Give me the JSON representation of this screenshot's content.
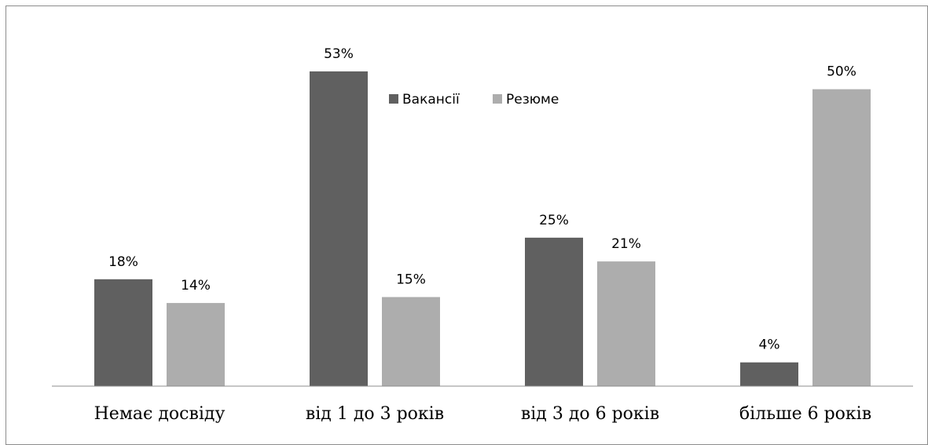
{
  "chart_data": {
    "type": "bar",
    "categories": [
      "Немає досвіду",
      "від 1 до 3 років",
      "від 3 до 6 років",
      "більше 6 років"
    ],
    "series": [
      {
        "name": "Вакансії",
        "values": [
          18,
          53,
          25,
          4
        ],
        "labels": [
          "18%",
          "53%",
          "25%",
          "4%"
        ],
        "color": "#606060"
      },
      {
        "name": "Резюме",
        "values": [
          14,
          15,
          21,
          50
        ],
        "labels": [
          "14%",
          "15%",
          "21%",
          "50%"
        ],
        "color": "#adadad"
      }
    ],
    "title": "",
    "xlabel": "",
    "ylabel": "",
    "ylim": [
      0,
      60
    ],
    "grid": false,
    "legend": "top-center"
  }
}
